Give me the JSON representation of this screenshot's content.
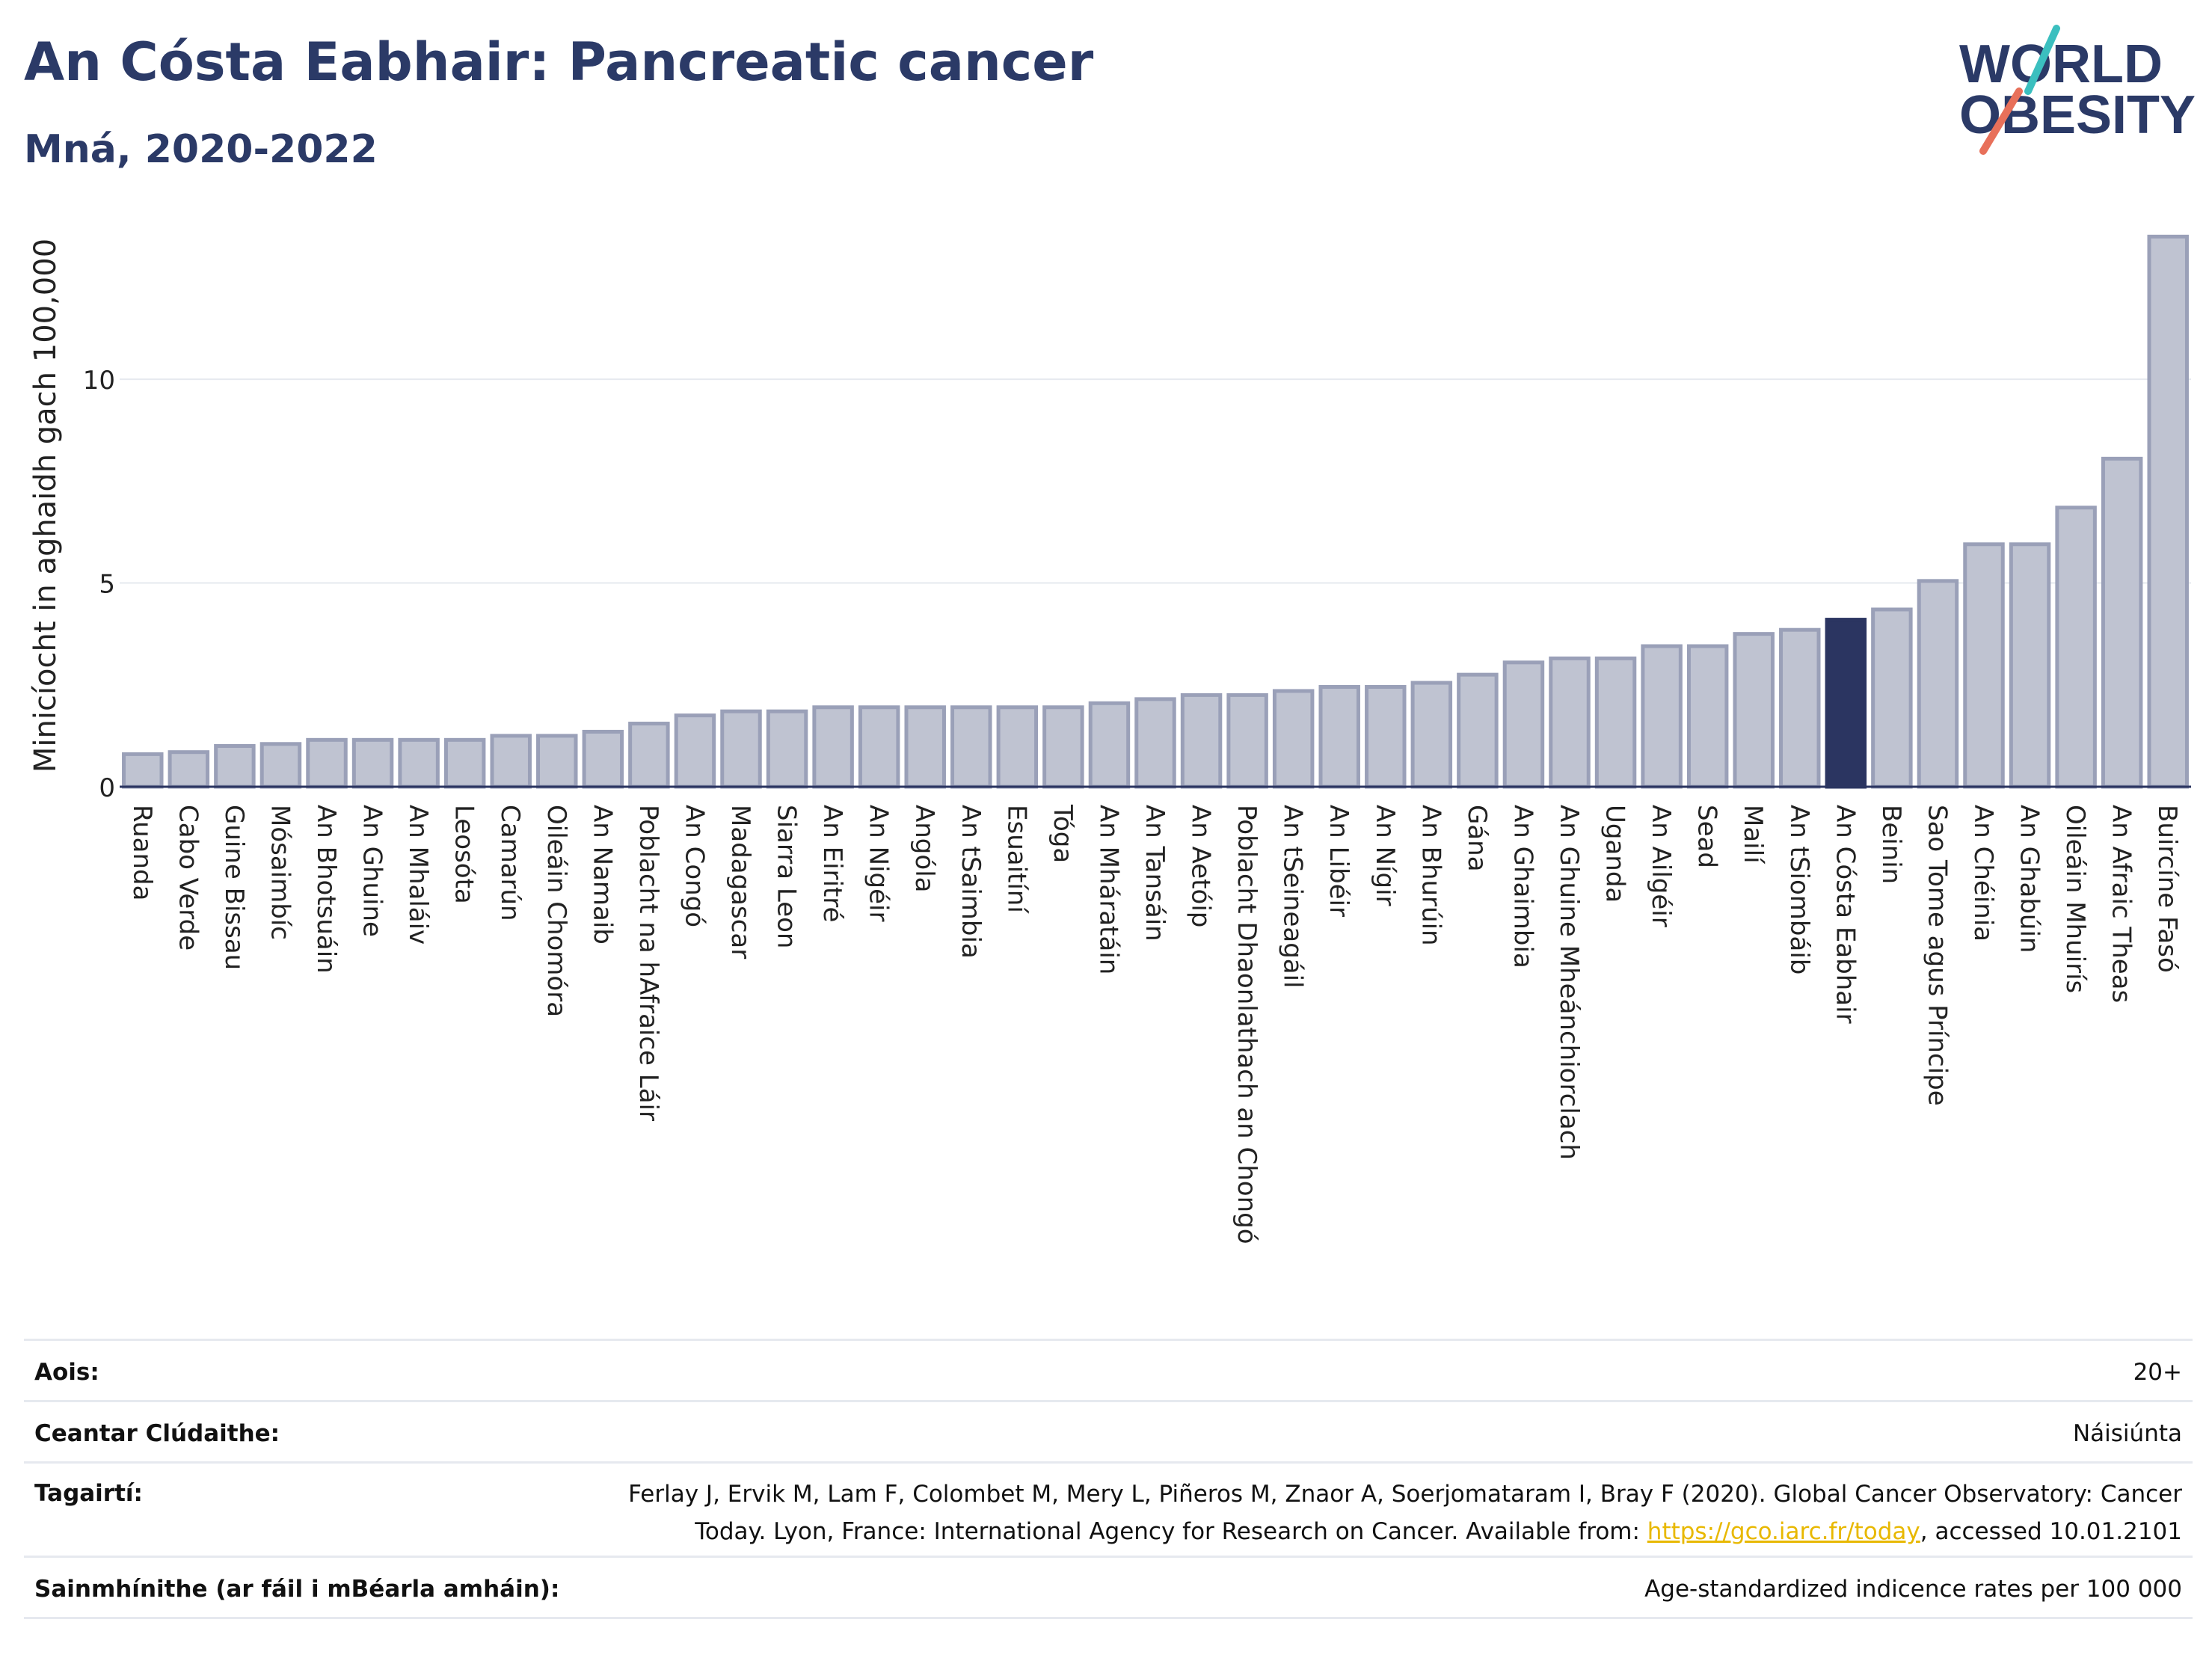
{
  "title": "An Cósta Eabhair: Pancreatic cancer",
  "subtitle": "Mná, 2020-2022",
  "logo": {
    "line1": "WORLD",
    "line2": "OBESITY"
  },
  "colors": {
    "bar_default": "#bfc3d1",
    "bar_default_stroke": "#9aa0b8",
    "bar_highlight": "#2b3561",
    "title": "#2b3a67",
    "link": "#e8b800",
    "logo_teal": "#3bbfbf",
    "logo_coral": "#e8705a"
  },
  "chart_data": {
    "type": "bar",
    "ylabel": "Minicíocht in aghaidh gach 100,000",
    "ylim": [
      0,
      13.8
    ],
    "yticks": [
      0,
      5,
      10
    ],
    "grid": true,
    "highlight": "An Cósta Eabhair",
    "categories": [
      "Ruanda",
      "Cabo Verde",
      "Guine Bissau",
      "Mósaimbíc",
      "An Bhotsuáin",
      "An Ghuine",
      "An Mhaláiv",
      "Leosóta",
      "Camarún",
      "Oileáin Chomóra",
      "An Namaib",
      "Poblacht na hAfraice Láir",
      "An Congó",
      "Madagascar",
      "Siarra Leon",
      "An Eiritré",
      "An Nigéir",
      "Angóla",
      "An tSaimbia",
      "Esuaitíní",
      "Tóga",
      "An Mháratáin",
      "An Tansáin",
      "An Aetóip",
      "Poblacht Dhaonlathach an Chongó",
      "An tSeineagáil",
      "An Libéir",
      "An Nígir",
      "An Bhurúin",
      "Gána",
      "An Ghaimbia",
      "An Ghuine Mheánchiorclach",
      "Uganda",
      "An Ailgéir",
      "Sead",
      "Mailí",
      "An tSiombáib",
      "An Cósta Eabhair",
      "Beinin",
      "Sao Tome agus Príncipe",
      "An Chéinia",
      "An Ghabúin",
      "Oileáin Mhuirís",
      "An Afraic Theas",
      "Buircíne Fasó"
    ],
    "values": [
      0.8,
      0.85,
      1.0,
      1.05,
      1.15,
      1.15,
      1.15,
      1.15,
      1.25,
      1.25,
      1.35,
      1.55,
      1.75,
      1.85,
      1.85,
      1.95,
      1.95,
      1.95,
      1.95,
      1.95,
      1.95,
      2.05,
      2.15,
      2.25,
      2.25,
      2.35,
      2.45,
      2.45,
      2.55,
      2.75,
      3.05,
      3.15,
      3.15,
      3.45,
      3.45,
      3.75,
      3.85,
      4.1,
      4.35,
      5.05,
      5.95,
      5.95,
      6.85,
      8.05,
      13.5
    ]
  },
  "meta": {
    "age": {
      "label": "Aois:",
      "value": "20+"
    },
    "area": {
      "label": "Ceantar Clúdaithe:",
      "value": "Náisiúnta"
    },
    "refs": {
      "label": "Tagairtí:",
      "line1": "Ferlay J, Ervik M, Lam F, Colombet M, Mery L, Piñeros M, Znaor A, Soerjomataram I, Bray F (2020). Global Cancer Observatory: Cancer",
      "line2_pre": "Today. Lyon, France: International Agency for Research on Cancer. Available from: ",
      "link": "https://gco.iarc.fr/today",
      "line2_post": ", accessed 10.01.2101"
    },
    "defs": {
      "label": "Sainmhínithe (ar fáil i mBéarla amháin):",
      "value": "Age-standardized indicence rates per 100 000"
    }
  }
}
